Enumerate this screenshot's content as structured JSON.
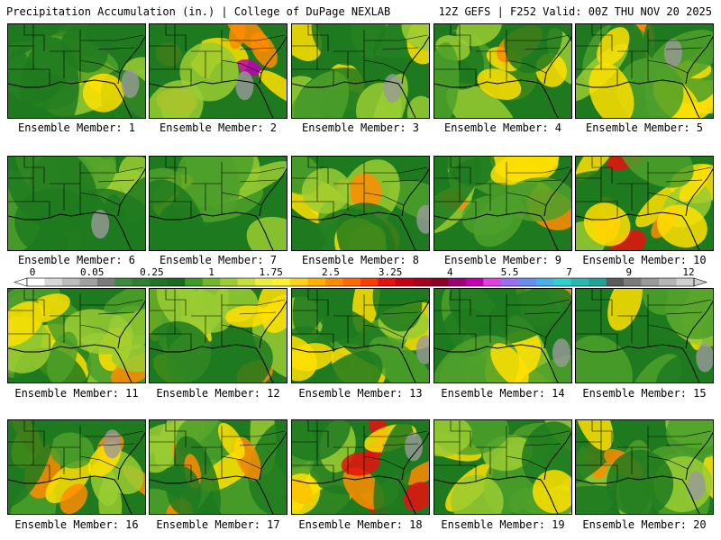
{
  "header": {
    "title": "Precipitation Accumulation (in.) | College of DuPage NEXLAB",
    "run_info": "12Z GEFS | F252 Valid: 00Z THU NOV 20 2025"
  },
  "panels": [
    {
      "label": "Ensemble Member: 1",
      "intensity": 0.35,
      "seed": 1
    },
    {
      "label": "Ensemble Member: 2",
      "intensity": 0.85,
      "seed": 2
    },
    {
      "label": "Ensemble Member: 3",
      "intensity": 0.4,
      "seed": 3
    },
    {
      "label": "Ensemble Member: 4",
      "intensity": 0.45,
      "seed": 4
    },
    {
      "label": "Ensemble Member: 5",
      "intensity": 0.6,
      "seed": 5
    },
    {
      "label": "Ensemble Member: 6",
      "intensity": 0.2,
      "seed": 6
    },
    {
      "label": "Ensemble Member: 7",
      "intensity": 0.25,
      "seed": 7
    },
    {
      "label": "Ensemble Member: 8",
      "intensity": 0.55,
      "seed": 8
    },
    {
      "label": "Ensemble Member: 9",
      "intensity": 0.5,
      "seed": 9
    },
    {
      "label": "Ensemble Member: 10",
      "intensity": 0.8,
      "seed": 10
    },
    {
      "label": "Ensemble Member: 11",
      "intensity": 0.45,
      "seed": 11
    },
    {
      "label": "Ensemble Member: 12",
      "intensity": 0.45,
      "seed": 12
    },
    {
      "label": "Ensemble Member: 13",
      "intensity": 0.3,
      "seed": 13
    },
    {
      "label": "Ensemble Member: 14",
      "intensity": 0.55,
      "seed": 14
    },
    {
      "label": "Ensemble Member: 15",
      "intensity": 0.35,
      "seed": 15
    },
    {
      "label": "Ensemble Member: 16",
      "intensity": 0.65,
      "seed": 16
    },
    {
      "label": "Ensemble Member: 17",
      "intensity": 0.55,
      "seed": 17
    },
    {
      "label": "Ensemble Member: 18",
      "intensity": 0.8,
      "seed": 18
    },
    {
      "label": "Ensemble Member: 19",
      "intensity": 0.4,
      "seed": 19
    },
    {
      "label": "Ensemble Member: 20",
      "intensity": 0.45,
      "seed": 20
    }
  ],
  "colorbar": {
    "labels": [
      "0",
      "0.05",
      "0.25",
      "1",
      "1.75",
      "2.5",
      "3.25",
      "4",
      "5.5",
      "7",
      "9",
      "12"
    ],
    "colors": [
      "#ffffff",
      "#d9d9d9",
      "#bdbdbd",
      "#a0a0a0",
      "#7a7a7a",
      "#3e8a3e",
      "#2f7f2f",
      "#247324",
      "#1a6a1a",
      "#3b9a2a",
      "#6eb82a",
      "#9acd32",
      "#c5e03a",
      "#eaf041",
      "#fff22e",
      "#ffd21c",
      "#ffb000",
      "#ff8c00",
      "#ff6a00",
      "#ff3b00",
      "#e81010",
      "#c70016",
      "#a5001c",
      "#8a0028",
      "#9c0074",
      "#c000b0",
      "#e040e0",
      "#9a70f0",
      "#6a8cf0",
      "#4ab0e8",
      "#30d0d0",
      "#28b8b0",
      "#1fa29a",
      "#5a5a5a",
      "#7a7a7a",
      "#9a9a9a",
      "#b5b5b5",
      "#d0d0d0"
    ],
    "scale_colors": {
      "dry": "#1f7a1f",
      "light": "#4ea02a",
      "moderate": "#9acd32",
      "heavy": "#ffe000",
      "very_heavy": "#ff8c00",
      "extreme": "#e81010",
      "record": "#c000b0",
      "missing": "#9a9a9a"
    }
  }
}
